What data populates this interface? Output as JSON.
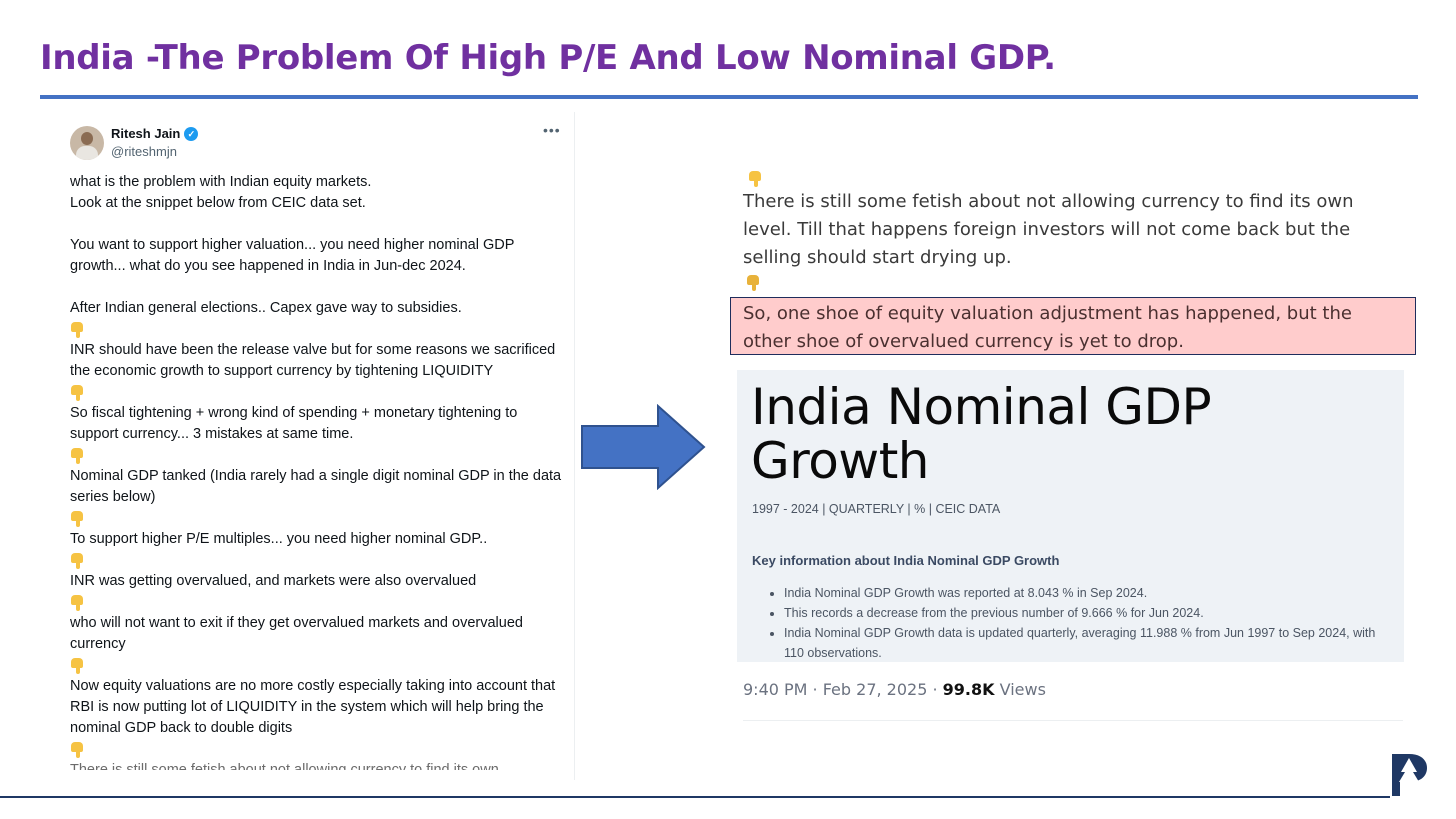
{
  "slide": {
    "title": "India -The Problem Of High P/E And Low Nominal GDP."
  },
  "tweet": {
    "author_name": "Ritesh Jain",
    "handle": "@riteshmjn",
    "lines": [
      "what is the problem with Indian equity markets.",
      "Look at the snippet below from CEIC data set.",
      "You want to support higher valuation... you need higher nominal GDP growth... what do you see happened in India in Jun-dec 2024.",
      "After Indian general elections.. Capex gave way to subsidies.",
      "INR should have been the release valve but for some reasons we sacrificed the economic growth to support currency by tightening LIQUIDITY",
      "So fiscal tightening + wrong kind of spending + monetary tightening to support currency... 3 mistakes at same time.",
      "Nominal GDP tanked (India rarely had a single digit nominal GDP in the data series below)",
      "To support higher P/E multiples... you need higher nominal GDP..",
      "INR was getting overvalued, and markets were also overvalued",
      "who will not want to exit if they get overvalued markets and overvalued currency",
      "Now equity valuations are no more costly especially taking into account that RBI is now putting lot of LIQUIDITY in the system which will help bring the nominal GDP back to double digits",
      "There is still some fetish about not allowing currency to find its own"
    ]
  },
  "snippet": {
    "text": "There is still some fetish about not allowing currency to find its own level. Till that happens foreign investors will not come back but the selling should start drying up.",
    "highlight": "So, one shoe of equity valuation adjustment has happened, but the other shoe of overvalued currency is yet to drop."
  },
  "ceic": {
    "title": "India Nominal GDP Growth",
    "subtitle": "1997 - 2024 | QUARTERLY | % | CEIC DATA",
    "key_heading": "Key information about India Nominal GDP Growth",
    "bullets": [
      "India Nominal GDP Growth was reported at 8.043 % in Sep 2024.",
      "This records a decrease from the previous number of 9.666 % for Jun 2024.",
      "India Nominal GDP Growth data is updated quarterly, averaging 11.988 % from Jun 1997 to Sep 2024, with 110 observations."
    ]
  },
  "meta": {
    "timestamp": "9:40 PM · Feb 27, 2025 · ",
    "views_count": "99.8K",
    "views_label": " Views"
  },
  "colors": {
    "title": "#7030a0",
    "rule": "#4472c4",
    "arrow": "#4472c4",
    "highlight_bg": "#ffcccc",
    "verified": "#1d9bf0"
  }
}
